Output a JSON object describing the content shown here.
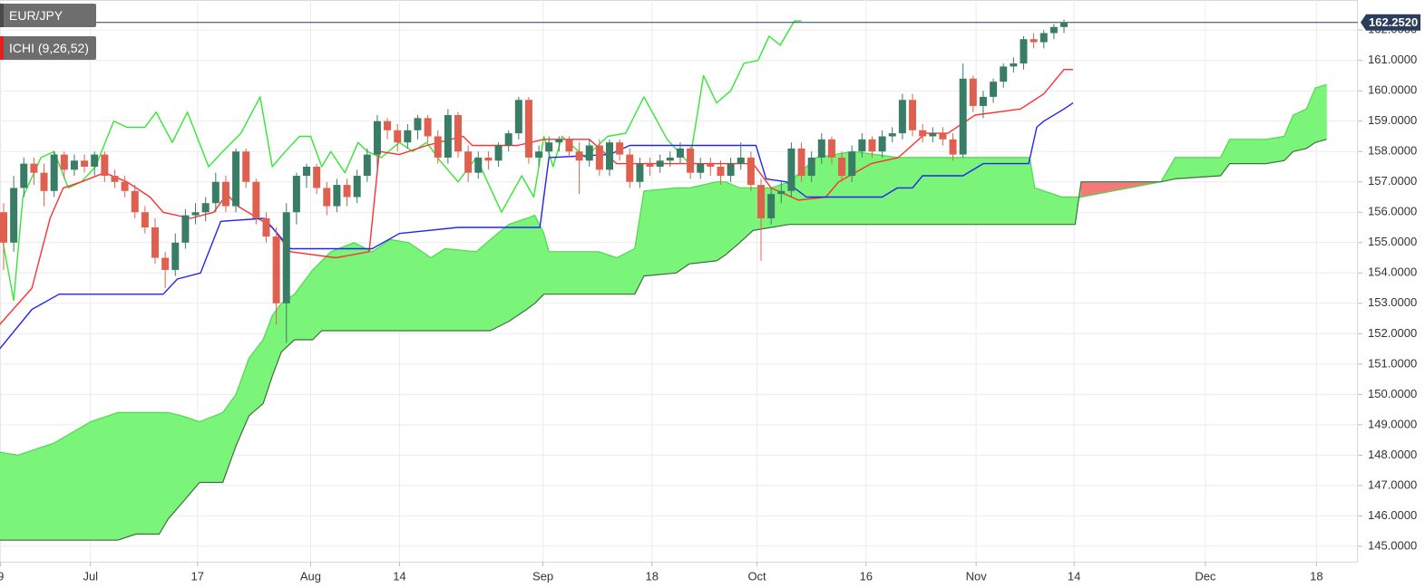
{
  "chart_data": {
    "type": "candlestick",
    "title": "EUR/JPY",
    "indicator": "ICHI (9,26,52)",
    "last_price": {
      "value": 162.252,
      "label": "162.2520"
    },
    "x": [
      0,
      1,
      2,
      3,
      4,
      5,
      6,
      7,
      8,
      9,
      10,
      11,
      12,
      13,
      14,
      15,
      16,
      17,
      18,
      19,
      20,
      21,
      22,
      23,
      24,
      25,
      26,
      27,
      28,
      29,
      30,
      31,
      32,
      33,
      34,
      35,
      36,
      37,
      38,
      39,
      40,
      41,
      42,
      43,
      44,
      45,
      46,
      47,
      48,
      49,
      50,
      51,
      52,
      53,
      54,
      55,
      56,
      57,
      58,
      59,
      60,
      61,
      62,
      63,
      64,
      65,
      66,
      67,
      68,
      69,
      70,
      71,
      72,
      73,
      74,
      75,
      76,
      77,
      78,
      79,
      80,
      81,
      82,
      83,
      84,
      85,
      86,
      87,
      88,
      89,
      90,
      91,
      92,
      93,
      94,
      95,
      96,
      97,
      98,
      99,
      100,
      101,
      102,
      103,
      104,
      105
    ],
    "open": [
      156.0,
      155.0,
      156.8,
      157.6,
      157.3,
      156.7,
      157.9,
      157.4,
      157.7,
      157.5,
      157.9,
      157.2,
      157.0,
      156.7,
      156.0,
      155.5,
      154.5,
      154.1,
      155.0,
      155.9,
      156.0,
      156.3,
      157.0,
      156.2,
      158.0,
      157.0,
      155.8,
      155.2,
      153.0,
      156.0,
      157.2,
      157.5,
      156.8,
      156.2,
      156.9,
      156.5,
      157.2,
      157.9,
      159.0,
      158.7,
      158.3,
      158.7,
      159.1,
      158.5,
      157.8,
      159.2,
      158.0,
      157.3,
      157.8,
      157.7,
      158.2,
      158.6,
      159.7,
      157.8,
      158.0,
      158.3,
      158.4,
      158.0,
      157.7,
      158.2,
      157.4,
      158.3,
      157.9,
      157.0,
      157.6,
      157.5,
      157.7,
      157.8,
      158.1,
      157.3,
      157.6,
      157.5,
      157.2,
      157.6,
      157.8,
      156.9,
      155.8,
      156.6,
      156.7,
      158.1,
      157.2,
      157.8,
      158.4,
      157.8,
      157.2,
      158.0,
      158.4,
      158.0,
      158.5,
      158.6,
      159.7,
      158.7,
      158.5,
      158.6,
      158.4,
      157.9,
      160.4,
      159.5,
      159.8,
      160.3,
      160.8,
      160.9,
      161.7,
      161.6,
      161.9,
      162.1
    ],
    "high": [
      156.3,
      157.2,
      157.8,
      157.8,
      157.6,
      158.0,
      158.0,
      157.9,
      157.9,
      158.0,
      158.0,
      157.4,
      157.2,
      156.9,
      156.2,
      155.8,
      154.7,
      155.3,
      156.1,
      156.3,
      156.5,
      157.3,
      157.2,
      158.1,
      158.1,
      157.1,
      156.0,
      155.5,
      156.3,
      157.3,
      157.6,
      157.6,
      157.0,
      157.1,
      157.1,
      157.4,
      158.1,
      159.2,
      159.1,
      158.9,
      158.9,
      159.2,
      159.2,
      158.7,
      159.4,
      159.3,
      158.2,
      158.0,
      158.0,
      158.3,
      158.7,
      159.8,
      159.8,
      158.2,
      158.5,
      158.5,
      158.5,
      158.3,
      158.4,
      158.4,
      158.4,
      158.4,
      158.1,
      157.8,
      157.8,
      157.9,
      158.0,
      158.3,
      158.2,
      157.8,
      157.8,
      157.7,
      157.8,
      158.3,
      158.0,
      157.1,
      156.8,
      157.0,
      158.3,
      158.3,
      158.0,
      158.6,
      158.5,
      158.0,
      158.2,
      158.6,
      158.5,
      158.7,
      158.8,
      159.9,
      159.9,
      158.9,
      158.8,
      158.8,
      158.6,
      160.9,
      160.5,
      160.0,
      160.4,
      160.9,
      161.1,
      161.8,
      161.9,
      162.0,
      162.2,
      162.35
    ],
    "low": [
      154.1,
      154.7,
      156.5,
      156.9,
      156.2,
      156.5,
      157.1,
      157.2,
      157.3,
      157.2,
      157.0,
      156.8,
      156.5,
      155.8,
      155.3,
      154.3,
      153.5,
      153.9,
      154.8,
      155.6,
      155.7,
      156.0,
      156.0,
      156.0,
      156.8,
      155.6,
      155.0,
      152.3,
      151.7,
      155.6,
      156.8,
      156.6,
      155.9,
      156.0,
      156.2,
      156.3,
      157.0,
      157.4,
      158.4,
      158.0,
      158.1,
      158.4,
      158.3,
      157.6,
      157.6,
      157.8,
      157.0,
      157.1,
      157.4,
      157.5,
      158.0,
      158.4,
      157.6,
      157.5,
      157.8,
      158.0,
      157.8,
      156.6,
      157.5,
      157.2,
      157.2,
      157.7,
      156.8,
      156.8,
      157.2,
      157.3,
      157.5,
      157.6,
      157.1,
      157.1,
      157.2,
      156.9,
      157.0,
      157.4,
      156.7,
      154.4,
      155.6,
      156.3,
      156.5,
      157.0,
      157.0,
      157.6,
      157.6,
      157.0,
      157.0,
      157.8,
      157.8,
      157.8,
      158.3,
      158.4,
      158.5,
      158.3,
      158.3,
      158.2,
      157.7,
      157.8,
      159.3,
      159.1,
      159.6,
      160.1,
      160.6,
      160.7,
      161.4,
      161.4,
      161.7,
      161.9
    ],
    "close": [
      155.0,
      156.8,
      157.6,
      157.3,
      156.7,
      157.9,
      157.4,
      157.7,
      157.5,
      157.9,
      157.2,
      157.0,
      156.7,
      156.0,
      155.5,
      154.5,
      154.1,
      155.0,
      155.9,
      156.0,
      156.3,
      157.0,
      156.2,
      158.0,
      157.0,
      155.8,
      155.2,
      153.0,
      156.0,
      157.2,
      157.5,
      156.8,
      156.2,
      156.9,
      156.5,
      157.2,
      157.9,
      159.0,
      158.7,
      158.3,
      158.7,
      159.1,
      158.5,
      157.8,
      159.2,
      158.0,
      157.3,
      157.8,
      157.7,
      158.2,
      158.6,
      159.7,
      157.8,
      158.0,
      158.3,
      158.4,
      158.0,
      157.7,
      158.2,
      157.4,
      158.3,
      157.9,
      157.0,
      157.6,
      157.5,
      157.7,
      157.8,
      158.1,
      157.3,
      157.6,
      157.5,
      157.2,
      157.6,
      157.8,
      156.9,
      155.8,
      156.6,
      156.7,
      158.1,
      157.2,
      157.8,
      158.4,
      157.8,
      157.2,
      158.0,
      158.4,
      158.0,
      158.5,
      158.6,
      159.7,
      158.7,
      158.5,
      158.6,
      158.4,
      157.9,
      160.4,
      159.5,
      159.8,
      160.3,
      160.8,
      160.9,
      161.7,
      161.6,
      161.9,
      162.1,
      162.252
    ],
    "up_color": "#3a7d66",
    "down_color": "#e0604f",
    "tenkan": {
      "color": "#ff3030",
      "x": [
        -0.4,
        2.8,
        4.6,
        5.9,
        7.7,
        10,
        12.2,
        14.5,
        15.8,
        18.5,
        20.8,
        22.1,
        23.2,
        25.2,
        26.6,
        28.4,
        32.9,
        36.2,
        37.2,
        39.2,
        41.9,
        45.5,
        46.4,
        50.9,
        53.5,
        58,
        60.7,
        74.2,
        76,
        78.7,
        81.4,
        82.7,
        85.9,
        88.6,
        91.3,
        93.5,
        96.2,
        100.7,
        103,
        105,
        105.9
      ],
      "values": [
        152.3,
        153.5,
        155.8,
        156.8,
        157.0,
        157.3,
        157.0,
        156.5,
        156.0,
        155.8,
        156.0,
        156.6,
        156.2,
        155.8,
        155.5,
        154.7,
        154.5,
        154.7,
        158.0,
        157.9,
        158.2,
        158.5,
        158.2,
        158.2,
        158.4,
        158.4,
        157.6,
        157.6,
        156.8,
        156.4,
        156.5,
        157.0,
        157.6,
        157.8,
        158.6,
        158.6,
        159.2,
        159.4,
        159.9,
        160.7,
        160.7
      ]
    },
    "kijun": {
      "color": "#2424f0",
      "x": [
        -0.4,
        2.8,
        5.5,
        15.8,
        17.2,
        19.5,
        21.5,
        25.8,
        28.4,
        36.5,
        39.2,
        45,
        53.1,
        54,
        60,
        62,
        74.5,
        75.5,
        77.5,
        79.5,
        87,
        88.5,
        90,
        91,
        95,
        97,
        101.5,
        102.3,
        103,
        105,
        105.9
      ],
      "values": [
        151.5,
        152.8,
        153.3,
        153.3,
        153.8,
        154.0,
        155.7,
        155.8,
        154.8,
        154.8,
        155.3,
        155.5,
        155.5,
        157.8,
        157.9,
        158.2,
        158.2,
        157.1,
        157.0,
        156.5,
        156.5,
        156.8,
        156.8,
        157.2,
        157.2,
        157.6,
        157.6,
        158.8,
        159.0,
        159.4,
        159.6
      ]
    },
    "chikou": {
      "color": "#33e833",
      "x": [
        -0.4,
        1.0,
        1.9,
        3.7,
        5.0,
        6.4,
        7.7,
        9.1,
        10.9,
        12.2,
        14.0,
        15.1,
        16.7,
        18.2,
        20.3,
        21.7,
        23.5,
        25.4,
        26.6,
        27.9,
        29.3,
        30.4,
        31.5,
        32.4,
        33.8,
        35.1,
        36.0,
        37.4,
        39.2,
        40.5,
        41.9,
        43.2,
        45.0,
        46.8,
        49.3,
        51.3,
        52.5,
        53.5,
        54.4,
        55.3,
        57.6,
        59.8,
        61.6,
        63.4,
        65.7,
        67.9,
        69.3,
        70.6,
        72.0,
        73.3,
        74.7,
        75.8,
        76.9,
        78.3,
        79.0
      ],
      "values": [
        155.6,
        153.1,
        156.5,
        157.8,
        158.0,
        156.8,
        157.0,
        157.5,
        159.0,
        158.8,
        158.8,
        159.3,
        158.3,
        159.3,
        157.5,
        158.0,
        158.6,
        159.8,
        157.5,
        158.0,
        158.5,
        158.5,
        157.5,
        158.0,
        157.3,
        158.3,
        158.0,
        157.8,
        158.3,
        158.0,
        158.3,
        157.7,
        157.0,
        157.8,
        156.0,
        157.2,
        156.5,
        158.5,
        157.5,
        158.5,
        157.8,
        158.5,
        158.6,
        159.8,
        158.4,
        157.6,
        160.5,
        159.6,
        160.0,
        160.9,
        161.0,
        161.8,
        161.5,
        162.3,
        162.3
      ]
    },
    "cloud": {
      "up_color": "#7af57a",
      "down_color": "#f47a7a",
      "a_color": "#4fd84f",
      "b_color": "#3f6e3f",
      "x": [
        -0.4,
        1.4,
        5.0,
        8.6,
        11.3,
        13.1,
        15.4,
        16.3,
        17.6,
        19.4,
        21.7,
        23.0,
        24.3,
        25.7,
        26.6,
        27.5,
        28.8,
        30.6,
        31.5,
        32.4,
        34.7,
        36.5,
        38.3,
        40.1,
        42.3,
        43.7,
        46.8,
        48.2,
        50.0,
        51.8,
        52.6,
        53.5,
        54.0,
        58.9,
        60.7,
        62.5,
        63.4,
        66.6,
        67.9,
        70.6,
        71.5,
        72.9,
        74.2,
        76.0,
        77.8,
        80.5,
        84.1,
        88.6,
        101.6,
        102.1,
        104.8,
        106.1,
        106.7,
        114.6,
        116.0,
        120.5,
        121.4,
        125.0,
        126.8,
        127.7,
        129.0,
        129.9,
        131.0
      ],
      "a": [
        148.1,
        148.0,
        148.4,
        149.1,
        149.4,
        149.4,
        149.4,
        149.4,
        149.3,
        149.1,
        149.4,
        150.0,
        151.2,
        151.8,
        152.6,
        153.0,
        153.3,
        154.1,
        154.4,
        154.7,
        155.0,
        154.7,
        155.1,
        155.0,
        154.5,
        154.8,
        154.7,
        155.1,
        155.6,
        155.8,
        155.9,
        155.3,
        154.7,
        154.7,
        154.5,
        154.8,
        156.7,
        156.8,
        156.8,
        157.0,
        157.0,
        156.8,
        156.8,
        156.8,
        157.0,
        157.8,
        158.0,
        157.8,
        157.8,
        156.8,
        156.5,
        156.5,
        156.5,
        157.0,
        157.8,
        157.8,
        158.4,
        158.4,
        158.5,
        159.2,
        159.4,
        160.1,
        160.2
      ],
      "b": [
        145.2,
        145.2,
        145.2,
        145.2,
        145.2,
        145.4,
        145.4,
        145.9,
        146.4,
        147.1,
        147.1,
        148.3,
        149.3,
        149.7,
        150.6,
        151.4,
        151.8,
        151.8,
        152.1,
        152.1,
        152.1,
        152.1,
        152.1,
        152.1,
        152.1,
        152.1,
        152.1,
        152.1,
        152.4,
        152.8,
        153.0,
        153.3,
        153.3,
        153.3,
        153.3,
        153.3,
        153.9,
        154.0,
        154.3,
        154.4,
        154.6,
        155.0,
        155.4,
        155.5,
        155.6,
        155.6,
        155.6,
        155.6,
        155.6,
        155.6,
        155.6,
        155.6,
        157.0,
        157.0,
        157.1,
        157.2,
        157.6,
        157.6,
        157.7,
        158.0,
        158.1,
        158.3,
        158.4
      ]
    },
    "xlim": [
      -0.36,
      134.1
    ],
    "xticks": [
      {
        "value": -0.3,
        "label": "9"
      },
      {
        "value": 8.6,
        "label": "Jul"
      },
      {
        "value": 19.2,
        "label": "17"
      },
      {
        "value": 30.4,
        "label": "Aug"
      },
      {
        "value": 39.2,
        "label": "14"
      },
      {
        "value": 53.4,
        "label": "Sep"
      },
      {
        "value": 64.2,
        "label": "18"
      },
      {
        "value": 74.6,
        "label": "Oct"
      },
      {
        "value": 85.4,
        "label": "16"
      },
      {
        "value": 96.3,
        "label": "Nov"
      },
      {
        "value": 106,
        "label": "14"
      },
      {
        "value": 119,
        "label": "Dec"
      },
      {
        "value": 130,
        "label": "18"
      }
    ],
    "ylim": [
      144.49,
      162.99
    ],
    "yticks": [
      {
        "value": 145,
        "label": "145.0000"
      },
      {
        "value": 146,
        "label": "146.0000"
      },
      {
        "value": 147,
        "label": "147.0000"
      },
      {
        "value": 148,
        "label": "148.0000"
      },
      {
        "value": 149,
        "label": "149.0000"
      },
      {
        "value": 150,
        "label": "150.0000"
      },
      {
        "value": 151,
        "label": "151.0000"
      },
      {
        "value": 152,
        "label": "152.0000"
      },
      {
        "value": 153,
        "label": "153.0000"
      },
      {
        "value": 154,
        "label": "154.0000"
      },
      {
        "value": 155,
        "label": "155.0000"
      },
      {
        "value": 156,
        "label": "156.0000"
      },
      {
        "value": 157,
        "label": "157.0000"
      },
      {
        "value": 158,
        "label": "158.0000"
      },
      {
        "value": 159,
        "label": "159.0000"
      },
      {
        "value": 160,
        "label": "160.0000"
      },
      {
        "value": 161,
        "label": "161.0000"
      },
      {
        "value": 162,
        "label": "162.0000"
      }
    ],
    "grid": true
  }
}
